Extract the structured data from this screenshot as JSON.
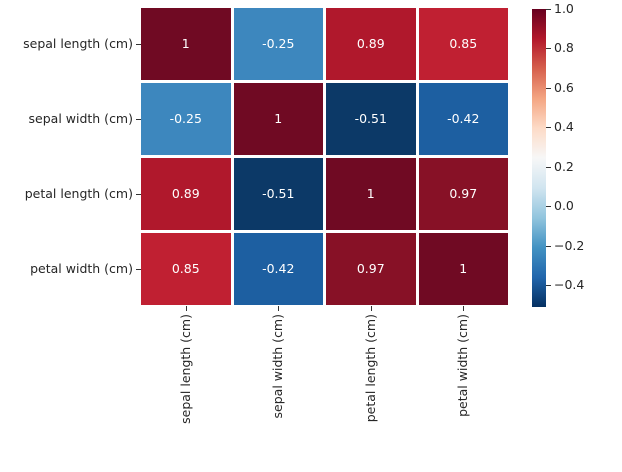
{
  "figure": {
    "background_color": "#ffffff",
    "axis_text_color": "#262626",
    "tick_color": "#333333"
  },
  "chart_data": {
    "type": "heatmap",
    "title": "",
    "x_tick_labels": [
      "sepal length (cm)",
      "sepal width (cm)",
      "petal length (cm)",
      "petal width (cm)"
    ],
    "y_tick_labels": [
      "sepal length (cm)",
      "sepal width (cm)",
      "petal length (cm)",
      "petal width (cm)"
    ],
    "matrix": [
      [
        1,
        -0.25,
        0.89,
        0.85
      ],
      [
        -0.25,
        1,
        -0.51,
        -0.42
      ],
      [
        0.89,
        -0.51,
        1,
        0.97
      ],
      [
        0.85,
        -0.42,
        0.97,
        1
      ]
    ],
    "cell_labels": [
      [
        "1",
        "-0.25",
        "0.89",
        "0.85"
      ],
      [
        "-0.25",
        "1",
        "-0.51",
        "-0.42"
      ],
      [
        "0.89",
        "-0.51",
        "1",
        "0.97"
      ],
      [
        "0.85",
        "-0.42",
        "0.97",
        "1"
      ]
    ],
    "cell_colors": [
      [
        "#700a23",
        "#3d87be",
        "#b0182c",
        "#c02032"
      ],
      [
        "#3d87be",
        "#700a23",
        "#0c3967",
        "#1d5fa1"
      ],
      [
        "#b0182c",
        "#0c3967",
        "#700a23",
        "#871126"
      ],
      [
        "#c02032",
        "#1d5fa1",
        "#871126",
        "#700a23"
      ]
    ],
    "annotation_text_color": "#ffffff",
    "grid_line_color": "#ffffff",
    "colormap": "RdBu_r",
    "vmin": -0.51,
    "vmax": 1.0,
    "x_tick_rotation_deg": 90,
    "colorbar": {
      "position": "right",
      "tick_values": [
        1.0,
        0.8,
        0.6,
        0.4,
        0.2,
        0.0,
        -0.2,
        -0.4
      ],
      "tick_labels": [
        "1.0",
        "0.8",
        "0.6",
        "0.4",
        "0.2",
        "0.0",
        "−0.2",
        "−0.4"
      ],
      "gradient_stops_top_to_bottom": [
        "#67001f",
        "#b2182b",
        "#d6604d",
        "#f4a582",
        "#fddbc7",
        "#f7f7f7",
        "#d1e5f0",
        "#92c5de",
        "#4393c3",
        "#2166ac",
        "#053061"
      ]
    }
  }
}
